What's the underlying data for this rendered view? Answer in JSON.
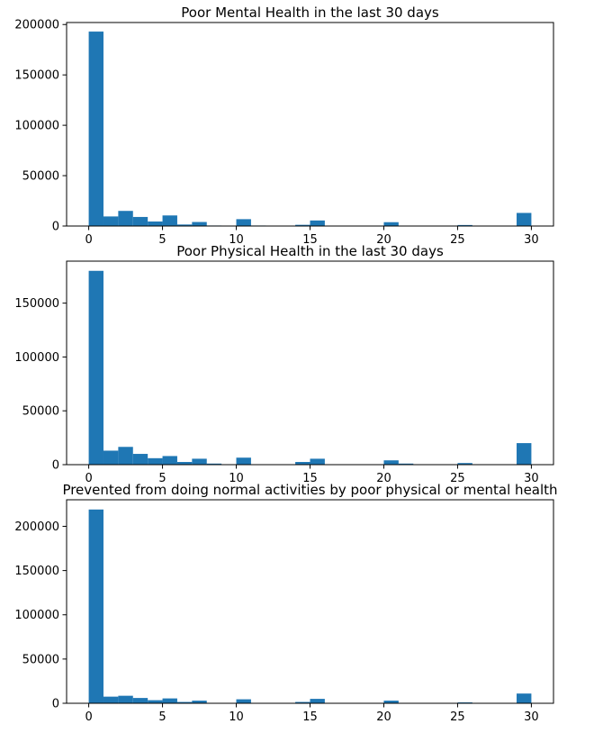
{
  "figure": {
    "bar_color": "#1f77b4",
    "background": "#ffffff"
  },
  "chart_data": [
    {
      "type": "bar",
      "title": "Poor Mental Health in the last 30 days",
      "xlabel": "",
      "ylabel": "",
      "bins": 30,
      "bin_range": [
        0,
        30
      ],
      "xlim": [
        -1.5,
        31.5
      ],
      "ylim": [
        0,
        202000
      ],
      "xticks": [
        0,
        5,
        10,
        15,
        20,
        25,
        30
      ],
      "yticks": [
        0,
        50000,
        100000,
        150000,
        200000
      ],
      "ytick_labels": [
        "0",
        "50000",
        "100000",
        "150000",
        "200000"
      ],
      "values": [
        193000,
        9500,
        15000,
        9000,
        4500,
        10500,
        1500,
        4000,
        500,
        0,
        6800,
        500,
        0,
        0,
        1200,
        5500,
        0,
        0,
        0,
        0,
        3800,
        0,
        0,
        0,
        0,
        1000,
        0,
        0,
        0,
        13000
      ],
      "grid": false
    },
    {
      "type": "bar",
      "title": "Poor Physical Health in the last 30 days",
      "xlabel": "",
      "ylabel": "",
      "bins": 30,
      "bin_range": [
        0,
        30
      ],
      "xlim": [
        -1.5,
        31.5
      ],
      "ylim": [
        0,
        189000
      ],
      "xticks": [
        0,
        5,
        10,
        15,
        20,
        25,
        30
      ],
      "yticks": [
        0,
        50000,
        100000,
        150000
      ],
      "ytick_labels": [
        "0",
        "50000",
        "100000",
        "150000"
      ],
      "values": [
        180000,
        13000,
        16500,
        10000,
        6000,
        8000,
        2500,
        5500,
        1000,
        0,
        6500,
        0,
        0,
        0,
        2500,
        5500,
        0,
        0,
        0,
        0,
        4000,
        1000,
        0,
        0,
        0,
        1500,
        0,
        0,
        0,
        20000
      ],
      "grid": false
    },
    {
      "type": "bar",
      "title": "Prevented from doing normal activities by poor physical or mental health",
      "xlabel": "",
      "ylabel": "",
      "bins": 30,
      "bin_range": [
        0,
        30
      ],
      "xlim": [
        -1.5,
        31.5
      ],
      "ylim": [
        0,
        230000
      ],
      "xticks": [
        0,
        5,
        10,
        15,
        20,
        25,
        30
      ],
      "yticks": [
        0,
        50000,
        100000,
        150000,
        200000
      ],
      "ytick_labels": [
        "0",
        "50000",
        "100000",
        "150000",
        "200000"
      ],
      "values": [
        219000,
        7500,
        8500,
        6000,
        3500,
        5500,
        1500,
        3000,
        0,
        0,
        4500,
        0,
        0,
        0,
        1500,
        5000,
        0,
        0,
        0,
        0,
        3000,
        0,
        0,
        0,
        0,
        1000,
        0,
        0,
        0,
        11000
      ],
      "grid": false
    }
  ]
}
